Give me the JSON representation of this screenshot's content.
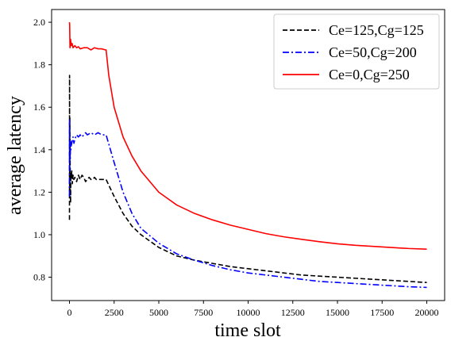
{
  "chart_data": {
    "type": "line",
    "title": "",
    "xlabel": "time slot",
    "ylabel": "average latency",
    "xlim": [
      -1000,
      21000
    ],
    "ylim": [
      0.69,
      2.06
    ],
    "xticks": [
      0,
      2500,
      5000,
      7500,
      10000,
      12500,
      15000,
      17500,
      20000
    ],
    "xtick_labels": [
      "0",
      "2500",
      "5000",
      "7500",
      "10000",
      "12500",
      "15000",
      "17500",
      "20000"
    ],
    "yticks": [
      0.8,
      1.0,
      1.2,
      1.4,
      1.6,
      1.8,
      2.0
    ],
    "ytick_labels": [
      "0.8",
      "1.0",
      "1.2",
      "1.4",
      "1.6",
      "1.8",
      "2.0"
    ],
    "grid": false,
    "legend_position": "top-right",
    "series": [
      {
        "name": "Ce=125,Cg=125",
        "color": "#000000",
        "dash": "dashed",
        "x": [
          0,
          5,
          10,
          20,
          40,
          60,
          80,
          100,
          130,
          160,
          200,
          250,
          300,
          400,
          500,
          600,
          700,
          800,
          900,
          1000,
          1100,
          1200,
          1300,
          1400,
          1500,
          1600,
          1700,
          1800,
          1900,
          2000,
          2050,
          2500,
          3000,
          3500,
          4000,
          5000,
          6000,
          7000,
          8000,
          9000,
          10000,
          11000,
          12000,
          13000,
          14000,
          15000,
          16000,
          17000,
          18000,
          19000,
          20000
        ],
        "y": [
          1.07,
          1.75,
          1.2,
          1.55,
          1.3,
          1.15,
          1.29,
          1.27,
          1.3,
          1.24,
          1.28,
          1.26,
          1.27,
          1.25,
          1.28,
          1.26,
          1.28,
          1.27,
          1.25,
          1.26,
          1.27,
          1.26,
          1.26,
          1.27,
          1.26,
          1.26,
          1.26,
          1.26,
          1.26,
          1.26,
          1.26,
          1.18,
          1.1,
          1.04,
          1.0,
          0.94,
          0.9,
          0.88,
          0.865,
          0.85,
          0.84,
          0.83,
          0.82,
          0.81,
          0.805,
          0.8,
          0.795,
          0.79,
          0.785,
          0.78,
          0.775
        ]
      },
      {
        "name": "Ce=50,Cg=200",
        "color": "#0000ff",
        "dash": "dashdot",
        "x": [
          0,
          5,
          10,
          20,
          40,
          60,
          80,
          100,
          150,
          200,
          250,
          300,
          400,
          500,
          600,
          700,
          800,
          900,
          1000,
          1200,
          1400,
          1600,
          1800,
          2000,
          2050,
          2500,
          3000,
          3500,
          4000,
          5000,
          6000,
          7000,
          8000,
          9000,
          10000,
          11000,
          12000,
          13000,
          14000,
          15000,
          16000,
          17000,
          18000,
          19000,
          20000
        ],
        "y": [
          1.18,
          1.54,
          1.3,
          1.4,
          1.35,
          1.44,
          1.4,
          1.42,
          1.44,
          1.46,
          1.43,
          1.45,
          1.47,
          1.46,
          1.47,
          1.46,
          1.47,
          1.48,
          1.47,
          1.48,
          1.47,
          1.48,
          1.47,
          1.47,
          1.47,
          1.34,
          1.2,
          1.1,
          1.03,
          0.96,
          0.91,
          0.88,
          0.855,
          0.835,
          0.82,
          0.81,
          0.8,
          0.79,
          0.78,
          0.775,
          0.77,
          0.765,
          0.76,
          0.755,
          0.752
        ]
      },
      {
        "name": "Ce=0,Cg=250",
        "color": "#ff0000",
        "dash": "solid",
        "x": [
          0,
          10,
          30,
          60,
          100,
          150,
          200,
          300,
          400,
          500,
          600,
          800,
          1000,
          1200,
          1400,
          1600,
          1800,
          2000,
          2050,
          2200,
          2500,
          3000,
          3500,
          4000,
          5000,
          6000,
          7000,
          8000,
          9000,
          10000,
          11000,
          12000,
          13000,
          14000,
          15000,
          16000,
          17000,
          18000,
          19000,
          20000
        ],
        "y": [
          2.0,
          1.99,
          1.88,
          1.92,
          1.89,
          1.9,
          1.88,
          1.89,
          1.88,
          1.885,
          1.875,
          1.88,
          1.88,
          1.87,
          1.88,
          1.875,
          1.875,
          1.87,
          1.87,
          1.75,
          1.6,
          1.46,
          1.37,
          1.3,
          1.2,
          1.14,
          1.1,
          1.07,
          1.045,
          1.025,
          1.005,
          0.99,
          0.978,
          0.967,
          0.957,
          0.95,
          0.945,
          0.94,
          0.935,
          0.932
        ]
      }
    ]
  }
}
